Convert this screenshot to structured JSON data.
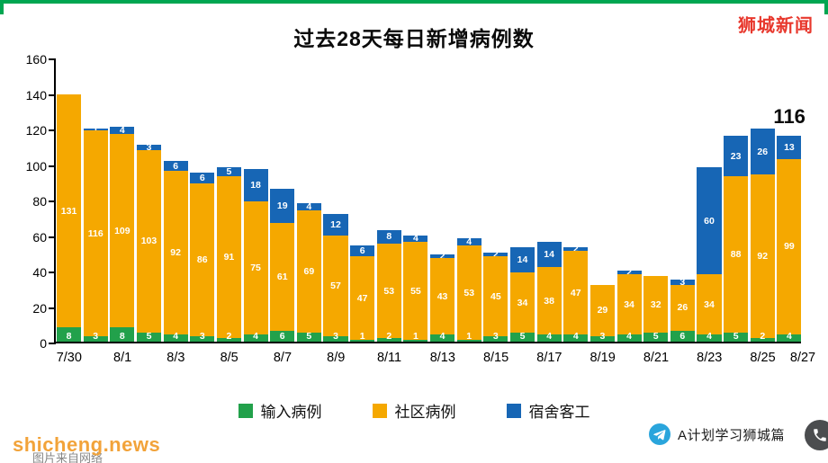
{
  "header": {
    "title": "过去28天每日新增病例数",
    "brand": "狮城新闻"
  },
  "chart_data": {
    "type": "bar",
    "stacked": true,
    "title": "过去28天每日新增病例数",
    "xlabel": "",
    "ylabel": "",
    "ylim": [
      0,
      160
    ],
    "grid": false,
    "legend_position": "bottom",
    "y_ticks": [
      0,
      20,
      40,
      60,
      80,
      100,
      120,
      140,
      160
    ],
    "x_tick_labels": [
      "7/30",
      "8/1",
      "8/3",
      "8/5",
      "8/7",
      "8/9",
      "8/11",
      "8/13",
      "8/15",
      "8/17",
      "8/19",
      "8/21",
      "8/23",
      "8/25",
      "8/27"
    ],
    "categories": [
      "7/30",
      "7/31",
      "8/1",
      "8/2",
      "8/3",
      "8/4",
      "8/5",
      "8/6",
      "8/7",
      "8/8",
      "8/9",
      "8/10",
      "8/11",
      "8/12",
      "8/13",
      "8/14",
      "8/15",
      "8/16",
      "8/17",
      "8/18",
      "8/19",
      "8/20",
      "8/21",
      "8/22",
      "8/23",
      "8/24",
      "8/25",
      "8/26"
    ],
    "series": [
      {
        "name": "输入病例",
        "color": "#22a14b",
        "values": [
          8,
          3,
          8,
          5,
          4,
          3,
          2,
          4,
          6,
          5,
          3,
          1,
          2,
          1,
          4,
          1,
          3,
          5,
          4,
          4,
          3,
          4,
          5,
          6,
          4,
          5,
          2,
          4
        ]
      },
      {
        "name": "社区病例",
        "color": "#f5a800",
        "values": [
          131,
          116,
          109,
          103,
          92,
          86,
          91,
          75,
          61,
          69,
          57,
          47,
          53,
          55,
          43,
          53,
          45,
          34,
          38,
          47,
          29,
          34,
          32,
          26,
          34,
          88,
          92,
          99
        ]
      },
      {
        "name": "宿舍客工",
        "color": "#1766b5",
        "values": [
          0,
          1,
          4,
          3,
          6,
          6,
          5,
          18,
          19,
          4,
          12,
          6,
          8,
          4,
          2,
          4,
          2,
          14,
          14,
          2,
          0,
          2,
          0,
          3,
          60,
          23,
          26,
          13
        ]
      }
    ],
    "annotation": {
      "text": "116",
      "bar_index": 27
    }
  },
  "footer": {
    "watermark": "shicheng.news",
    "watermark_caption": "图片来自网络",
    "social_label": "A计划学习狮城篇"
  },
  "colors": {
    "frame_green": "#00a651",
    "brand_red": "#e8382d",
    "watermark_orange": "#f2a33a",
    "telegram_blue": "#2aa5dc"
  }
}
